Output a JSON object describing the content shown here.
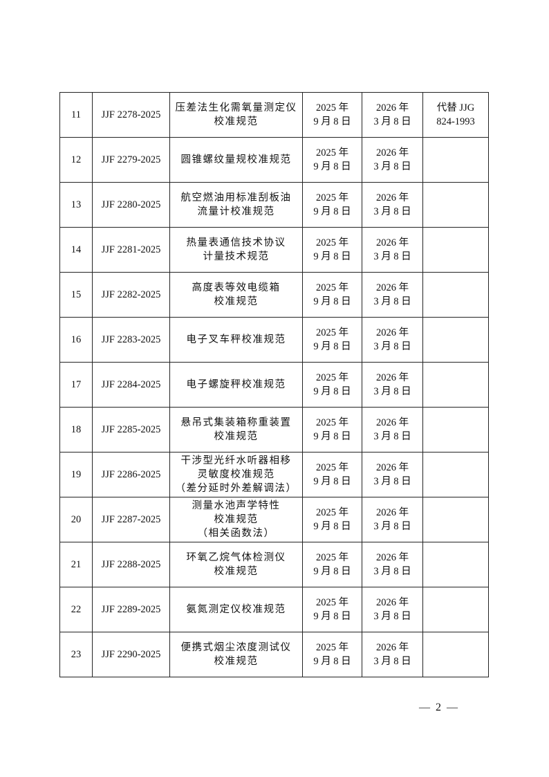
{
  "rows": [
    {
      "no": "11",
      "code": "JJF 2278-2025",
      "name": [
        "压差法生化需氧量测定仪",
        "校准规范"
      ],
      "issue": [
        "2025 年",
        "9 月 8 日"
      ],
      "effective": [
        "2026 年",
        "3 月 8 日"
      ],
      "note": [
        "代替 JJG",
        "824-1993"
      ]
    },
    {
      "no": "12",
      "code": "JJF 2279-2025",
      "name": [
        "圆锥螺纹量规校准规范"
      ],
      "issue": [
        "2025 年",
        "9 月 8 日"
      ],
      "effective": [
        "2026 年",
        "3 月 8 日"
      ],
      "note": []
    },
    {
      "no": "13",
      "code": "JJF 2280-2025",
      "name": [
        "航空燃油用标准刮板油",
        "流量计校准规范"
      ],
      "issue": [
        "2025 年",
        "9 月 8 日"
      ],
      "effective": [
        "2026 年",
        "3 月 8 日"
      ],
      "note": []
    },
    {
      "no": "14",
      "code": "JJF 2281-2025",
      "name": [
        "热量表通信技术协议",
        "计量技术规范"
      ],
      "issue": [
        "2025 年",
        "9 月 8 日"
      ],
      "effective": [
        "2026 年",
        "3 月 8 日"
      ],
      "note": []
    },
    {
      "no": "15",
      "code": "JJF 2282-2025",
      "name": [
        "高度表等效电缆箱",
        "校准规范"
      ],
      "issue": [
        "2025 年",
        "9 月 8 日"
      ],
      "effective": [
        "2026 年",
        "3 月 8 日"
      ],
      "note": []
    },
    {
      "no": "16",
      "code": "JJF 2283-2025",
      "name": [
        "电子叉车秤校准规范"
      ],
      "issue": [
        "2025 年",
        "9 月 8 日"
      ],
      "effective": [
        "2026 年",
        "3 月 8 日"
      ],
      "note": []
    },
    {
      "no": "17",
      "code": "JJF 2284-2025",
      "name": [
        "电子螺旋秤校准规范"
      ],
      "issue": [
        "2025 年",
        "9 月 8 日"
      ],
      "effective": [
        "2026 年",
        "3 月 8 日"
      ],
      "note": []
    },
    {
      "no": "18",
      "code": "JJF 2285-2025",
      "name": [
        "悬吊式集装箱称重装置",
        "校准规范"
      ],
      "issue": [
        "2025 年",
        "9 月 8 日"
      ],
      "effective": [
        "2026 年",
        "3 月 8 日"
      ],
      "note": []
    },
    {
      "no": "19",
      "code": "JJF 2286-2025",
      "name": [
        "干涉型光纤水听器相移",
        "灵敏度校准规范",
        "（差分延时外差解调法）"
      ],
      "issue": [
        "2025 年",
        "9 月 8 日"
      ],
      "effective": [
        "2026 年",
        "3 月 8 日"
      ],
      "note": []
    },
    {
      "no": "20",
      "code": "JJF 2287-2025",
      "name": [
        "测量水池声学特性",
        "校准规范",
        "（相关函数法）"
      ],
      "issue": [
        "2025 年",
        "9 月 8 日"
      ],
      "effective": [
        "2026 年",
        "3 月 8 日"
      ],
      "note": []
    },
    {
      "no": "21",
      "code": "JJF 2288-2025",
      "name": [
        "环氧乙烷气体检测仪",
        "校准规范"
      ],
      "issue": [
        "2025 年",
        "9 月 8 日"
      ],
      "effective": [
        "2026 年",
        "3 月 8 日"
      ],
      "note": []
    },
    {
      "no": "22",
      "code": "JJF 2289-2025",
      "name": [
        "氨氮测定仪校准规范"
      ],
      "issue": [
        "2025 年",
        "9 月 8 日"
      ],
      "effective": [
        "2026 年",
        "3 月 8 日"
      ],
      "note": []
    },
    {
      "no": "23",
      "code": "JJF 2290-2025",
      "name": [
        "便携式烟尘浓度测试仪",
        "校准规范"
      ],
      "issue": [
        "2025 年",
        "9 月 8 日"
      ],
      "effective": [
        "2026 年",
        "3 月 8 日"
      ],
      "note": []
    }
  ],
  "page_number": "— 2 —"
}
